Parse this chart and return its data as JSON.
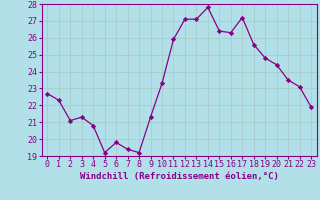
{
  "x": [
    0,
    1,
    2,
    3,
    4,
    5,
    6,
    7,
    8,
    9,
    10,
    11,
    12,
    13,
    14,
    15,
    16,
    17,
    18,
    19,
    20,
    21,
    22,
    23
  ],
  "y": [
    22.7,
    22.3,
    21.1,
    21.3,
    20.8,
    19.2,
    19.8,
    19.4,
    19.2,
    21.3,
    23.3,
    25.9,
    27.1,
    27.1,
    27.8,
    26.4,
    26.3,
    27.2,
    25.6,
    24.8,
    24.4,
    23.5,
    23.1,
    21.9
  ],
  "line_color": "#880088",
  "marker": "D",
  "marker_size": 2.2,
  "bg_color": "#b2e0e8",
  "grid_color": "#aacccc",
  "xlabel": "Windchill (Refroidissement éolien,°C)",
  "xlabel_fontsize": 6.5,
  "tick_fontsize": 6.0,
  "ylim": [
    19,
    28
  ],
  "yticks": [
    19,
    20,
    21,
    22,
    23,
    24,
    25,
    26,
    27,
    28
  ],
  "xticks": [
    0,
    1,
    2,
    3,
    4,
    5,
    6,
    7,
    8,
    9,
    10,
    11,
    12,
    13,
    14,
    15,
    16,
    17,
    18,
    19,
    20,
    21,
    22,
    23
  ]
}
